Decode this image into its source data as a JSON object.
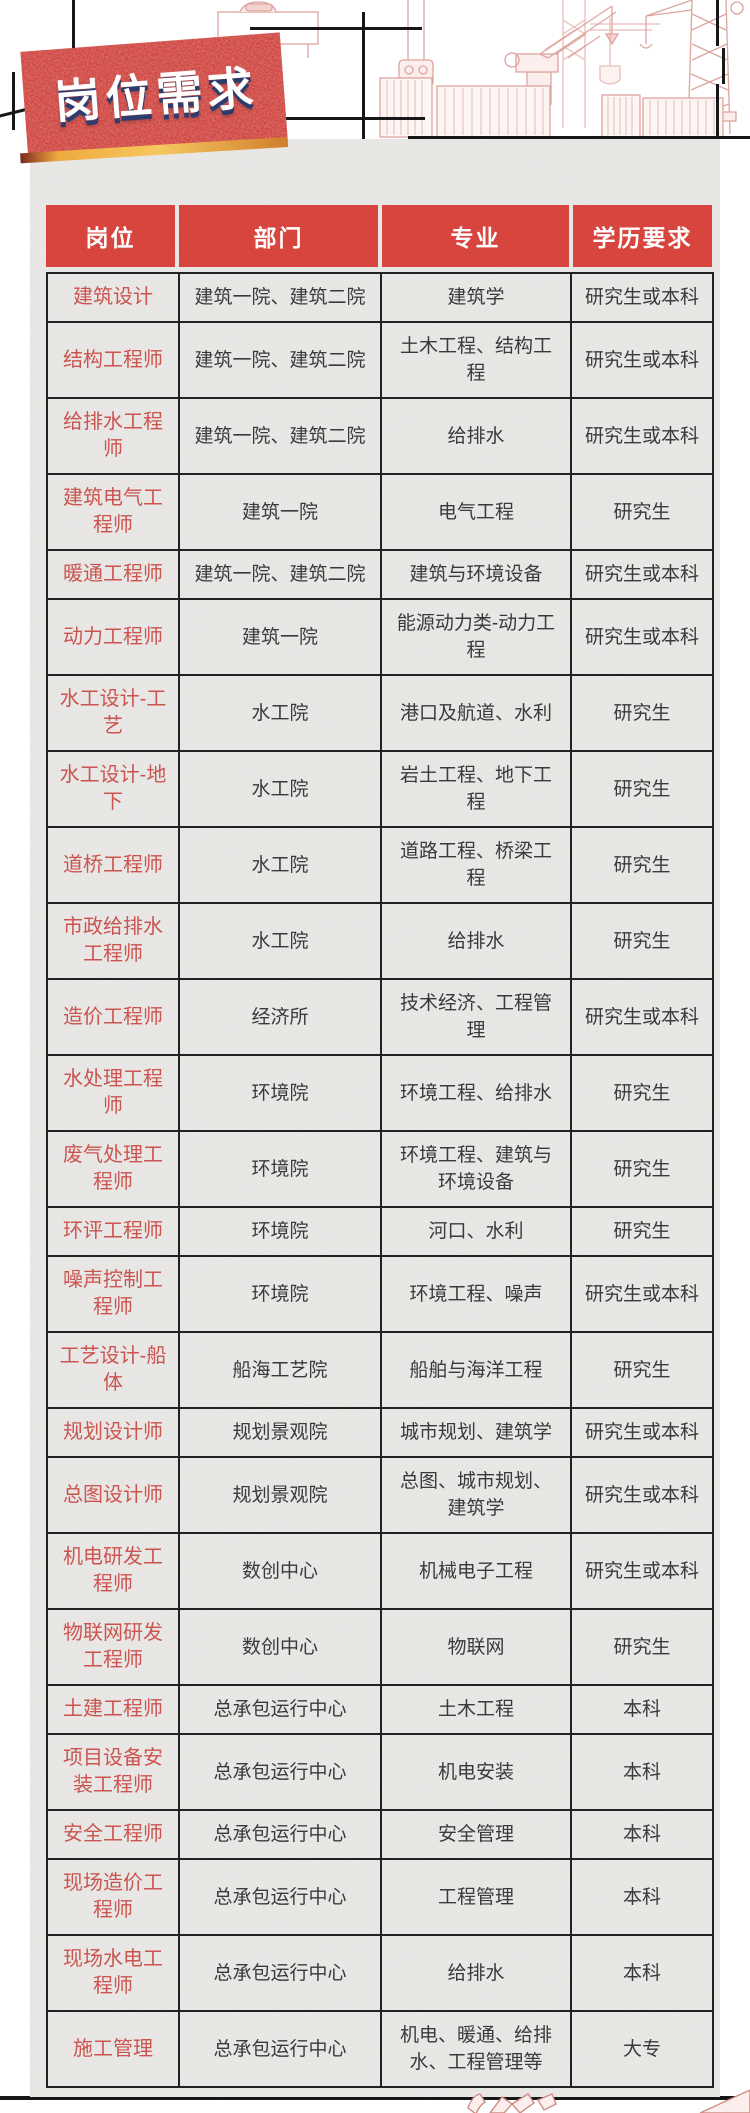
{
  "banner": {
    "title": "岗位需求"
  },
  "table": {
    "columns": [
      "岗位",
      "部门",
      "专业",
      "学历要求"
    ],
    "rows": [
      [
        "建筑设计",
        "建筑一院、建筑二院",
        "建筑学",
        "研究生或本科"
      ],
      [
        "结构工程师",
        "建筑一院、建筑二院",
        "土木工程、结构工程",
        "研究生或本科"
      ],
      [
        "给排水工程师",
        "建筑一院、建筑二院",
        "给排水",
        "研究生或本科"
      ],
      [
        "建筑电气工程师",
        "建筑一院",
        "电气工程",
        "研究生"
      ],
      [
        "暖通工程师",
        "建筑一院、建筑二院",
        "建筑与环境设备",
        "研究生或本科"
      ],
      [
        "动力工程师",
        "建筑一院",
        "能源动力类-动力工程",
        "研究生或本科"
      ],
      [
        "水工设计-工艺",
        "水工院",
        "港口及航道、水利",
        "研究生"
      ],
      [
        "水工设计-地下",
        "水工院",
        "岩土工程、地下工程",
        "研究生"
      ],
      [
        "道桥工程师",
        "水工院",
        "道路工程、桥梁工程",
        "研究生"
      ],
      [
        "市政给排水工程师",
        "水工院",
        "给排水",
        "研究生"
      ],
      [
        "造价工程师",
        "经济所",
        "技术经济、工程管理",
        "研究生或本科"
      ],
      [
        "水处理工程师",
        "环境院",
        "环境工程、给排水",
        "研究生"
      ],
      [
        "废气处理工程师",
        "环境院",
        "环境工程、建筑与环境设备",
        "研究生"
      ],
      [
        "环评工程师",
        "环境院",
        "河口、水利",
        "研究生"
      ],
      [
        "噪声控制工程师",
        "环境院",
        "环境工程、噪声",
        "研究生或本科"
      ],
      [
        "工艺设计-船体",
        "船海工艺院",
        "船舶与海洋工程",
        "研究生"
      ],
      [
        "规划设计师",
        "规划景观院",
        "城市规划、建筑学",
        "研究生或本科"
      ],
      [
        "总图设计师",
        "规划景观院",
        "总图、城市规划、建筑学",
        "研究生或本科"
      ],
      [
        "机电研发工程师",
        "数创中心",
        "机械电子工程",
        "研究生或本科"
      ],
      [
        "物联网研发工程师",
        "数创中心",
        "物联网",
        "研究生"
      ],
      [
        "土建工程师",
        "总承包运行中心",
        "土木工程",
        "本科"
      ],
      [
        "项目设备安装工程师",
        "总承包运行中心",
        "机电安装",
        "本科"
      ],
      [
        "安全工程师",
        "总承包运行中心",
        "安全管理",
        "本科"
      ],
      [
        "现场造价工程师",
        "总承包运行中心",
        "工程管理",
        "本科"
      ],
      [
        "现场水电工程师",
        "总承包运行中心",
        "给排水",
        "本科"
      ],
      [
        "施工管理",
        "总承包运行中心",
        "机电、暖通、给排水、工程管理等",
        "大专"
      ]
    ]
  },
  "colors": {
    "banner_red": "#cf433e",
    "header_red": "#d8453f",
    "position_text_red": "#cb544f",
    "body_text": "#3a3a3a",
    "page_gray": "#eae9e7",
    "banner_shadow_navy": "#2d3c6d",
    "accent_gold": "#eeaa3e",
    "frame_black": "#171717",
    "lineart_pink": "#d9958e"
  }
}
